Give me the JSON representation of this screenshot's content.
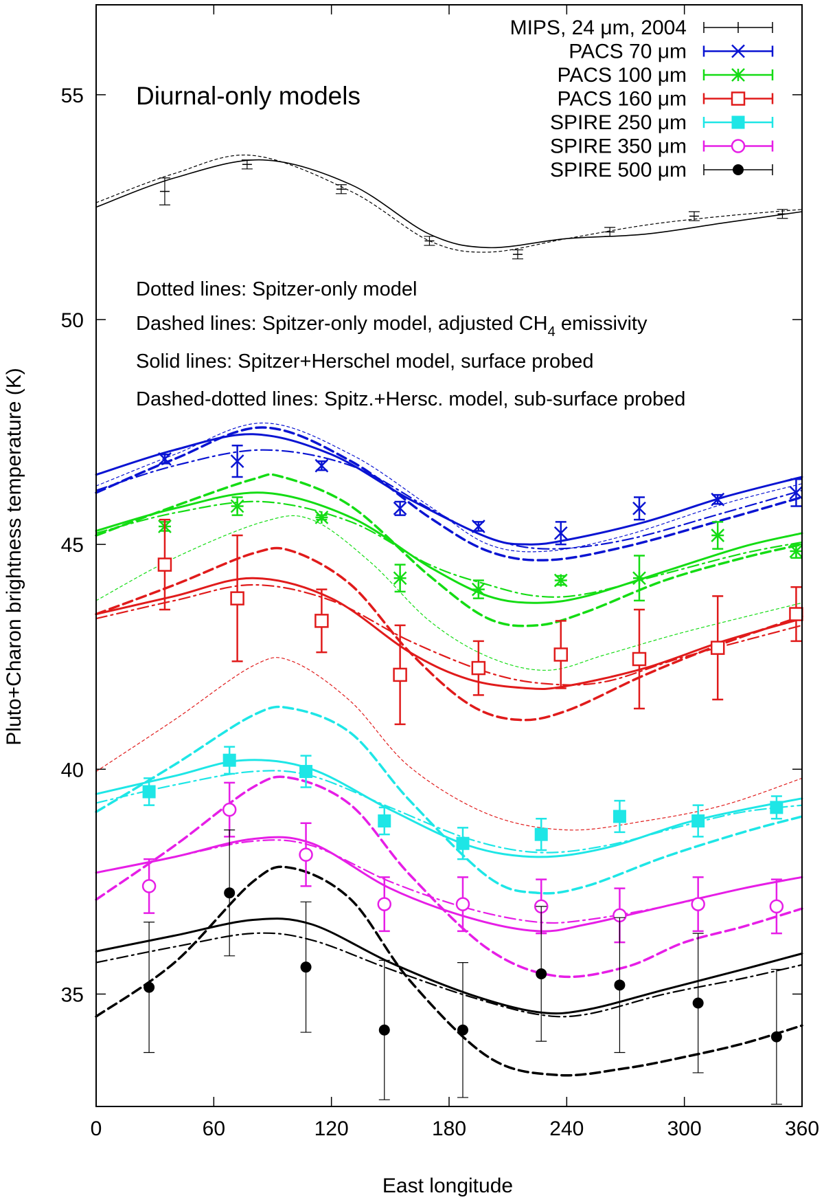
{
  "chart_data": {
    "type": "line",
    "title": "",
    "panel_label": "Diurnal-only models",
    "xlabel": "East longitude",
    "ylabel": "Pluto+Charon brightness temperature (K)",
    "xlim": [
      0,
      360
    ],
    "ylim": [
      32.5,
      57.0
    ],
    "xticks": [
      0,
      60,
      120,
      180,
      240,
      300,
      360
    ],
    "yticks": [
      35,
      40,
      45,
      50,
      55
    ],
    "notes": [
      "Dotted lines: Spitzer-only model",
      "Dashed lines: Spitzer-only model, adjusted CH",
      "Solid lines: Spitzer+Herschel model, surface probed",
      "Dashed-dotted lines: Spitz.+Hersc. model, sub-surface probed"
    ],
    "note_subscript": "4",
    "note_suffix": " emissivity",
    "legend_position": "top-right",
    "legend": [
      {
        "label": "MIPS, 24 μm, 2004",
        "color": "#000000",
        "marker": "plus"
      },
      {
        "label": "PACS 70 μm",
        "color": "#0a14d2",
        "marker": "x"
      },
      {
        "label": "PACS 100 μm",
        "color": "#14dc14",
        "marker": "star"
      },
      {
        "label": "PACS 160 μm",
        "color": "#e01b1b",
        "marker": "open-square"
      },
      {
        "label": "SPIRE 250 μm",
        "color": "#1ee6e6",
        "marker": "filled-square"
      },
      {
        "label": "SPIRE 350 μm",
        "color": "#e61ee6",
        "marker": "open-circle"
      },
      {
        "label": "SPIRE 500 μm",
        "color": "#000000",
        "marker": "filled-circle"
      }
    ],
    "data_series": [
      {
        "name": "MIPS, 24 μm, 2004",
        "x": [
          35,
          77,
          125,
          170,
          215,
          262,
          305,
          350
        ],
        "y": [
          52.85,
          53.45,
          52.9,
          51.75,
          51.45,
          51.95,
          52.3,
          52.35
        ],
        "err": [
          0.3,
          0.1,
          0.1,
          0.1,
          0.1,
          0.1,
          0.1,
          0.1
        ]
      },
      {
        "name": "PACS 70 μm",
        "x": [
          35,
          72,
          115,
          155,
          195,
          237,
          277,
          317,
          357
        ],
        "y": [
          46.9,
          46.85,
          46.75,
          45.8,
          45.4,
          45.25,
          45.8,
          46.0,
          46.15
        ],
        "err": [
          0.1,
          0.35,
          0.1,
          0.15,
          0.1,
          0.25,
          0.25,
          0.1,
          0.3
        ]
      },
      {
        "name": "PACS 100 μm",
        "x": [
          35,
          72,
          115,
          155,
          195,
          237,
          277,
          317,
          357
        ],
        "y": [
          45.4,
          45.85,
          45.6,
          44.25,
          44.0,
          44.2,
          44.25,
          45.2,
          44.85
        ],
        "err": [
          0.1,
          0.2,
          0.05,
          0.3,
          0.2,
          0.1,
          0.5,
          0.3,
          0.15
        ]
      },
      {
        "name": "PACS 160 μm",
        "x": [
          35,
          72,
          115,
          155,
          195,
          237,
          277,
          317,
          357
        ],
        "y": [
          44.55,
          43.8,
          43.3,
          42.1,
          42.25,
          42.55,
          42.45,
          42.7,
          43.45
        ],
        "err": [
          1.0,
          1.4,
          0.7,
          1.1,
          0.6,
          0.75,
          1.1,
          1.15,
          0.6
        ]
      },
      {
        "name": "SPIRE 250 μm",
        "x": [
          27,
          68,
          107,
          147,
          187,
          227,
          267,
          307,
          347
        ],
        "y": [
          39.5,
          40.2,
          39.95,
          38.85,
          38.35,
          38.55,
          38.95,
          38.85,
          39.15
        ],
        "err": [
          0.3,
          0.3,
          0.35,
          0.3,
          0.35,
          0.35,
          0.35,
          0.35,
          0.25
        ]
      },
      {
        "name": "SPIRE 350 μm",
        "x": [
          27,
          68,
          107,
          147,
          187,
          227,
          267,
          307,
          347
        ],
        "y": [
          37.4,
          39.1,
          38.1,
          37.0,
          37.0,
          36.95,
          36.75,
          37.0,
          36.95
        ],
        "err": [
          0.6,
          0.6,
          0.7,
          0.6,
          0.6,
          0.6,
          0.6,
          0.6,
          0.6
        ]
      },
      {
        "name": "SPIRE 500 μm",
        "x": [
          27,
          68,
          107,
          147,
          187,
          227,
          267,
          307,
          347
        ],
        "y": [
          35.15,
          37.25,
          35.6,
          34.2,
          34.2,
          35.45,
          35.2,
          34.8,
          34.05
        ],
        "err": [
          1.45,
          1.4,
          1.45,
          1.55,
          1.5,
          1.5,
          1.5,
          1.55,
          1.5
        ]
      }
    ],
    "model_curves": [
      {
        "band": "MIPS 24",
        "style": "solid",
        "color": "#000000",
        "width": 1.6,
        "x": [
          0,
          40,
          85,
          130,
          170,
          200,
          240,
          280,
          320,
          360
        ],
        "y": [
          52.5,
          53.15,
          53.55,
          53.0,
          51.9,
          51.6,
          51.8,
          51.9,
          52.15,
          52.4
        ]
      },
      {
        "band": "MIPS 24",
        "style": "dotted",
        "color": "#000000",
        "width": 1.2,
        "x": [
          0,
          40,
          80,
          130,
          170,
          200,
          240,
          280,
          320,
          360
        ],
        "y": [
          52.6,
          53.25,
          53.65,
          52.85,
          51.75,
          51.5,
          51.8,
          52.1,
          52.3,
          52.45
        ]
      },
      {
        "band": "PACS 70",
        "style": "solid",
        "color": "#0a14d2",
        "width": 3,
        "x": [
          0,
          40,
          80,
          120,
          160,
          200,
          220,
          240,
          280,
          320,
          360
        ],
        "y": [
          46.55,
          47.1,
          47.45,
          47.0,
          46.0,
          45.15,
          45.0,
          45.1,
          45.5,
          46.05,
          46.5
        ]
      },
      {
        "band": "PACS 70",
        "style": "dotted",
        "color": "#0a14d2",
        "width": 1.2,
        "x": [
          0,
          40,
          85,
          130,
          170,
          200,
          230,
          270,
          320,
          360
        ],
        "y": [
          46.3,
          47.0,
          47.7,
          47.0,
          45.85,
          45.0,
          44.85,
          45.2,
          45.9,
          46.35
        ]
      },
      {
        "band": "PACS 70",
        "style": "dashed",
        "color": "#0a14d2",
        "width": 3.5,
        "x": [
          0,
          40,
          85,
          130,
          170,
          200,
          230,
          270,
          320,
          360
        ],
        "y": [
          46.15,
          46.9,
          47.6,
          46.85,
          45.6,
          44.85,
          44.65,
          44.95,
          45.55,
          46.05
        ]
      },
      {
        "band": "PACS 70",
        "style": "dashdot",
        "color": "#0a14d2",
        "width": 2.2,
        "x": [
          0,
          40,
          85,
          130,
          170,
          200,
          230,
          270,
          320,
          360
        ],
        "y": [
          46.2,
          46.75,
          47.1,
          46.75,
          45.8,
          45.15,
          44.9,
          45.1,
          45.7,
          46.2
        ]
      },
      {
        "band": "PACS 100",
        "style": "solid",
        "color": "#14dc14",
        "width": 3,
        "x": [
          0,
          40,
          85,
          130,
          170,
          200,
          225,
          250,
          290,
          330,
          360
        ],
        "y": [
          45.3,
          45.8,
          46.15,
          45.6,
          44.5,
          43.85,
          43.7,
          43.85,
          44.4,
          44.95,
          45.25
        ]
      },
      {
        "band": "PACS 100",
        "style": "dotted",
        "color": "#14dc14",
        "width": 1.2,
        "x": [
          0,
          40,
          85,
          110,
          140,
          170,
          200,
          230,
          260,
          300,
          360
        ],
        "y": [
          43.75,
          44.7,
          45.5,
          45.55,
          44.6,
          43.3,
          42.5,
          42.2,
          42.55,
          43.05,
          43.7
        ]
      },
      {
        "band": "PACS 100",
        "style": "dashed",
        "color": "#14dc14",
        "width": 3.5,
        "x": [
          0,
          40,
          80,
          95,
          130,
          170,
          200,
          225,
          250,
          290,
          330,
          360
        ],
        "y": [
          45.2,
          45.85,
          46.45,
          46.5,
          45.85,
          44.3,
          43.35,
          43.2,
          43.5,
          44.2,
          44.7,
          45.0
        ]
      },
      {
        "band": "PACS 100",
        "style": "dashdot",
        "color": "#14dc14",
        "width": 2.2,
        "x": [
          0,
          40,
          85,
          130,
          170,
          200,
          225,
          250,
          290,
          330,
          360
        ],
        "y": [
          45.25,
          45.7,
          45.95,
          45.5,
          44.55,
          44.1,
          43.85,
          43.9,
          44.35,
          44.8,
          45.05
        ]
      },
      {
        "band": "PACS 160",
        "style": "solid",
        "color": "#e01b1b",
        "width": 3,
        "x": [
          0,
          40,
          80,
          120,
          160,
          190,
          220,
          240,
          280,
          320,
          360
        ],
        "y": [
          43.45,
          43.85,
          44.25,
          43.8,
          42.6,
          42.0,
          41.8,
          41.85,
          42.25,
          42.85,
          43.35
        ]
      },
      {
        "band": "PACS 160",
        "style": "dotted",
        "color": "#e01b1b",
        "width": 1.2,
        "x": [
          0,
          40,
          80,
          100,
          130,
          160,
          200,
          240,
          280,
          320,
          360
        ],
        "y": [
          39.95,
          41.1,
          42.3,
          42.4,
          41.5,
          40.05,
          39.0,
          38.65,
          38.85,
          39.2,
          39.8
        ]
      },
      {
        "band": "PACS 160",
        "style": "dashed",
        "color": "#e01b1b",
        "width": 3.5,
        "x": [
          0,
          40,
          80,
          100,
          130,
          160,
          190,
          215,
          240,
          280,
          320,
          360
        ],
        "y": [
          43.45,
          44.1,
          44.8,
          44.85,
          44.1,
          42.6,
          41.45,
          41.1,
          41.3,
          42.1,
          42.8,
          43.4
        ]
      },
      {
        "band": "PACS 160",
        "style": "dashdot",
        "color": "#e01b1b",
        "width": 2.2,
        "x": [
          0,
          40,
          80,
          120,
          160,
          200,
          230,
          260,
          300,
          360
        ],
        "y": [
          43.35,
          43.75,
          44.1,
          43.75,
          42.85,
          42.15,
          41.9,
          41.95,
          42.5,
          43.2
        ]
      },
      {
        "band": "SPIRE 250",
        "style": "solid",
        "color": "#1ee6e6",
        "width": 3,
        "x": [
          0,
          40,
          75,
          110,
          150,
          190,
          225,
          260,
          300,
          330,
          360
        ],
        "y": [
          39.45,
          39.85,
          40.2,
          40.0,
          39.1,
          38.3,
          38.05,
          38.25,
          38.8,
          39.1,
          39.35
        ]
      },
      {
        "band": "SPIRE 250",
        "style": "dashed",
        "color": "#1ee6e6",
        "width": 3.5,
        "x": [
          0,
          40,
          80,
          100,
          130,
          160,
          200,
          225,
          250,
          290,
          330,
          360
        ],
        "y": [
          39.05,
          40.1,
          41.2,
          41.35,
          40.8,
          39.3,
          37.6,
          37.25,
          37.4,
          38.05,
          38.6,
          38.95
        ]
      },
      {
        "band": "SPIRE 250",
        "style": "dashdot",
        "color": "#1ee6e6",
        "width": 2.2,
        "x": [
          0,
          40,
          80,
          110,
          150,
          190,
          225,
          260,
          300,
          330,
          360
        ],
        "y": [
          39.25,
          39.65,
          39.95,
          39.85,
          39.15,
          38.45,
          38.15,
          38.3,
          38.75,
          39.05,
          39.2
        ]
      },
      {
        "band": "SPIRE 350",
        "style": "solid",
        "color": "#e61ee6",
        "width": 3,
        "x": [
          0,
          40,
          80,
          110,
          150,
          190,
          225,
          250,
          290,
          330,
          360
        ],
        "y": [
          37.7,
          38.05,
          38.45,
          38.35,
          37.35,
          36.7,
          36.4,
          36.55,
          36.95,
          37.35,
          37.6
        ]
      },
      {
        "band": "SPIRE 350",
        "style": "dashed",
        "color": "#e61ee6",
        "width": 3.5,
        "x": [
          0,
          40,
          80,
          100,
          130,
          160,
          200,
          235,
          270,
          300,
          330,
          360
        ],
        "y": [
          37.1,
          38.3,
          39.6,
          39.8,
          39.2,
          37.65,
          36.0,
          35.4,
          35.6,
          36.15,
          36.5,
          36.9
        ]
      },
      {
        "band": "SPIRE 350",
        "style": "dashdot",
        "color": "#e61ee6",
        "width": 2.2,
        "x": [
          0,
          40,
          80,
          110,
          150,
          190,
          225,
          250,
          290,
          330,
          360
        ],
        "y": [
          37.7,
          38.05,
          38.4,
          38.3,
          37.5,
          36.9,
          36.6,
          36.65,
          36.95,
          37.35,
          37.6
        ]
      },
      {
        "band": "SPIRE 500",
        "style": "solid",
        "color": "#000000",
        "width": 3,
        "x": [
          0,
          40,
          80,
          110,
          150,
          190,
          225,
          250,
          290,
          330,
          360
        ],
        "y": [
          35.95,
          36.3,
          36.65,
          36.55,
          35.7,
          35.0,
          34.6,
          34.65,
          35.1,
          35.55,
          35.9
        ]
      },
      {
        "band": "SPIRE 500",
        "style": "dashed",
        "color": "#000000",
        "width": 3.5,
        "x": [
          0,
          40,
          80,
          100,
          130,
          160,
          200,
          235,
          270,
          300,
          330,
          360
        ],
        "y": [
          34.5,
          35.7,
          37.5,
          37.8,
          37.1,
          35.3,
          33.6,
          33.2,
          33.35,
          33.6,
          33.9,
          34.3
        ]
      },
      {
        "band": "SPIRE 500",
        "style": "dashdot",
        "color": "#000000",
        "width": 2.2,
        "x": [
          0,
          40,
          80,
          110,
          150,
          190,
          225,
          250,
          290,
          330,
          360
        ],
        "y": [
          35.7,
          36.05,
          36.35,
          36.2,
          35.55,
          34.95,
          34.55,
          34.55,
          35.0,
          35.35,
          35.65
        ]
      }
    ]
  }
}
